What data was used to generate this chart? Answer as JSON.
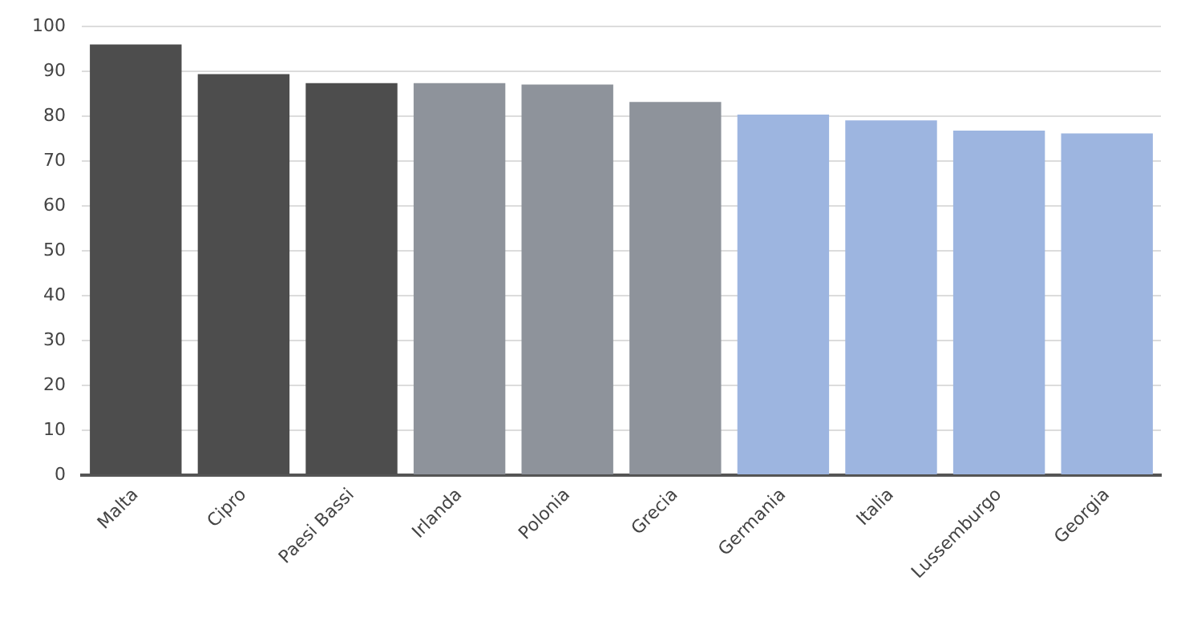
{
  "chart_data": {
    "type": "bar",
    "categories": [
      "Malta",
      "Cipro",
      "Paesi Bassi",
      "Irlanda",
      "Polonia",
      "Grecia",
      "Germania",
      "Italia",
      "Lussemburgo",
      "Georgia"
    ],
    "values": [
      96.0,
      89.4,
      87.4,
      87.4,
      87.1,
      83.2,
      80.4,
      79.1,
      76.8,
      76.2
    ],
    "colors": [
      "#4d4d4d",
      "#4d4d4d",
      "#4d4d4d",
      "#8e939b",
      "#8e939b",
      "#8e939b",
      "#9db5e0",
      "#9db5e0",
      "#9db5e0",
      "#9db5e0"
    ],
    "ylim": [
      0,
      100
    ],
    "yticks": [
      0,
      10,
      20,
      30,
      40,
      50,
      60,
      70,
      80,
      90,
      100
    ],
    "grid": "y",
    "legend": false
  }
}
